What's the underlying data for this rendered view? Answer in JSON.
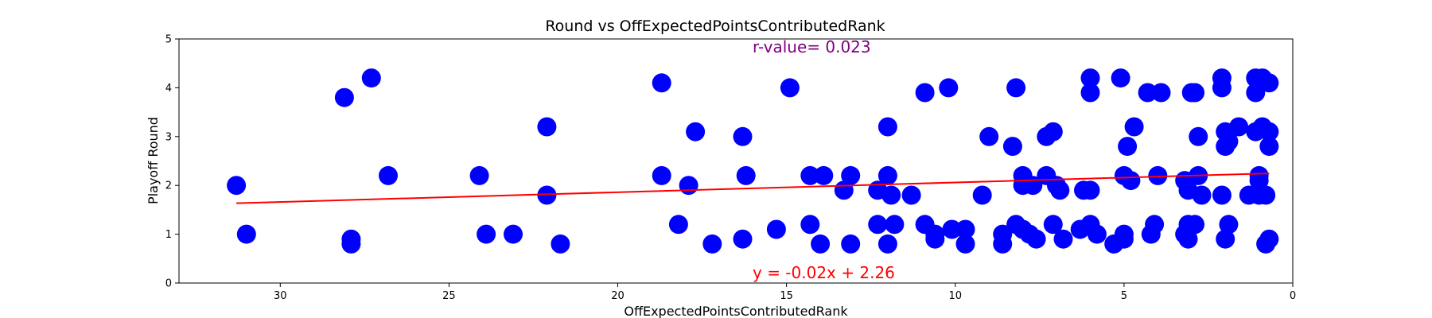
{
  "chart_data": {
    "type": "scatter",
    "title": "Round vs OffExpectedPointsContributedRank",
    "xlabel": "OffExpectedPointsContributedRank",
    "ylabel": "Playoff Round",
    "xlim": [
      33,
      0
    ],
    "ylim": [
      0,
      5
    ],
    "x_inverted": true,
    "xticks": [
      30,
      25,
      20,
      15,
      10,
      5,
      0
    ],
    "yticks": [
      0,
      1,
      2,
      3,
      4,
      5
    ],
    "grid": false,
    "point_color": "#0000ff",
    "fit_color": "#ff0000",
    "annotation_color": "#800080",
    "r_value_text": "r-value= 0.023",
    "fit_equation_text": "y = -0.02x + 2.26",
    "fit_line": {
      "slope": -0.02,
      "intercept": 2.26,
      "x_range": [
        31.3,
        0.7
      ]
    },
    "points": [
      {
        "x": 31.3,
        "y": 2.0
      },
      {
        "x": 31.0,
        "y": 1.0
      },
      {
        "x": 28.1,
        "y": 3.8
      },
      {
        "x": 27.9,
        "y": 0.9
      },
      {
        "x": 27.9,
        "y": 0.8
      },
      {
        "x": 27.3,
        "y": 4.2
      },
      {
        "x": 26.8,
        "y": 2.2
      },
      {
        "x": 24.1,
        "y": 2.2
      },
      {
        "x": 23.9,
        "y": 1.0
      },
      {
        "x": 23.1,
        "y": 1.0
      },
      {
        "x": 22.1,
        "y": 3.2
      },
      {
        "x": 22.1,
        "y": 1.8
      },
      {
        "x": 21.7,
        "y": 0.8
      },
      {
        "x": 18.7,
        "y": 4.1
      },
      {
        "x": 18.7,
        "y": 2.2
      },
      {
        "x": 18.2,
        "y": 1.2
      },
      {
        "x": 17.9,
        "y": 2.0
      },
      {
        "x": 17.7,
        "y": 3.1
      },
      {
        "x": 17.2,
        "y": 0.8
      },
      {
        "x": 16.3,
        "y": 3.0
      },
      {
        "x": 16.2,
        "y": 2.2
      },
      {
        "x": 16.3,
        "y": 0.9
      },
      {
        "x": 15.3,
        "y": 1.1
      },
      {
        "x": 14.9,
        "y": 4.0
      },
      {
        "x": 14.3,
        "y": 2.2
      },
      {
        "x": 14.3,
        "y": 1.2
      },
      {
        "x": 13.9,
        "y": 2.2
      },
      {
        "x": 14.0,
        "y": 0.8
      },
      {
        "x": 13.3,
        "y": 1.9
      },
      {
        "x": 13.1,
        "y": 2.2
      },
      {
        "x": 13.1,
        "y": 0.8
      },
      {
        "x": 12.3,
        "y": 1.9
      },
      {
        "x": 12.3,
        "y": 1.2
      },
      {
        "x": 12.0,
        "y": 3.2
      },
      {
        "x": 12.0,
        "y": 2.2
      },
      {
        "x": 11.9,
        "y": 1.8
      },
      {
        "x": 11.8,
        "y": 1.2
      },
      {
        "x": 12.0,
        "y": 0.8
      },
      {
        "x": 11.3,
        "y": 1.8
      },
      {
        "x": 10.9,
        "y": 3.9
      },
      {
        "x": 10.9,
        "y": 1.2
      },
      {
        "x": 10.6,
        "y": 1.0
      },
      {
        "x": 10.6,
        "y": 0.9
      },
      {
        "x": 10.2,
        "y": 4.0
      },
      {
        "x": 10.1,
        "y": 1.1
      },
      {
        "x": 9.7,
        "y": 1.1
      },
      {
        "x": 9.7,
        "y": 0.8
      },
      {
        "x": 9.2,
        "y": 1.8
      },
      {
        "x": 9.0,
        "y": 3.0
      },
      {
        "x": 8.6,
        "y": 1.0
      },
      {
        "x": 8.6,
        "y": 0.8
      },
      {
        "x": 8.3,
        "y": 2.8
      },
      {
        "x": 8.2,
        "y": 4.0
      },
      {
        "x": 8.2,
        "y": 1.2
      },
      {
        "x": 8.0,
        "y": 2.2
      },
      {
        "x": 8.0,
        "y": 2.0
      },
      {
        "x": 8.0,
        "y": 1.1
      },
      {
        "x": 7.8,
        "y": 1.0
      },
      {
        "x": 7.7,
        "y": 2.0
      },
      {
        "x": 7.6,
        "y": 0.9
      },
      {
        "x": 7.3,
        "y": 3.0
      },
      {
        "x": 7.3,
        "y": 2.2
      },
      {
        "x": 7.1,
        "y": 3.1
      },
      {
        "x": 7.1,
        "y": 1.2
      },
      {
        "x": 7.0,
        "y": 2.0
      },
      {
        "x": 6.9,
        "y": 1.9
      },
      {
        "x": 6.8,
        "y": 0.9
      },
      {
        "x": 6.3,
        "y": 1.1
      },
      {
        "x": 6.2,
        "y": 1.9
      },
      {
        "x": 6.0,
        "y": 4.2
      },
      {
        "x": 6.0,
        "y": 3.9
      },
      {
        "x": 6.0,
        "y": 1.9
      },
      {
        "x": 6.0,
        "y": 1.2
      },
      {
        "x": 5.8,
        "y": 1.0
      },
      {
        "x": 5.3,
        "y": 0.8
      },
      {
        "x": 5.1,
        "y": 4.2
      },
      {
        "x": 5.0,
        "y": 1.0
      },
      {
        "x": 5.0,
        "y": 0.9
      },
      {
        "x": 5.0,
        "y": 2.2
      },
      {
        "x": 4.9,
        "y": 2.8
      },
      {
        "x": 4.8,
        "y": 2.1
      },
      {
        "x": 4.7,
        "y": 3.2
      },
      {
        "x": 4.3,
        "y": 3.9
      },
      {
        "x": 4.2,
        "y": 1.0
      },
      {
        "x": 4.1,
        "y": 1.2
      },
      {
        "x": 4.0,
        "y": 2.2
      },
      {
        "x": 3.9,
        "y": 3.9
      },
      {
        "x": 3.2,
        "y": 2.1
      },
      {
        "x": 3.2,
        "y": 1.0
      },
      {
        "x": 3.1,
        "y": 1.1
      },
      {
        "x": 3.1,
        "y": 1.2
      },
      {
        "x": 3.1,
        "y": 1.9
      },
      {
        "x": 3.1,
        "y": 0.9
      },
      {
        "x": 3.0,
        "y": 3.9
      },
      {
        "x": 2.9,
        "y": 3.9
      },
      {
        "x": 2.9,
        "y": 1.2
      },
      {
        "x": 2.8,
        "y": 2.2
      },
      {
        "x": 2.8,
        "y": 3.0
      },
      {
        "x": 2.7,
        "y": 1.8
      },
      {
        "x": 2.1,
        "y": 4.2
      },
      {
        "x": 2.1,
        "y": 4.0
      },
      {
        "x": 2.0,
        "y": 3.1
      },
      {
        "x": 2.0,
        "y": 2.8
      },
      {
        "x": 2.0,
        "y": 0.9
      },
      {
        "x": 2.1,
        "y": 1.8
      },
      {
        "x": 1.9,
        "y": 2.9
      },
      {
        "x": 1.9,
        "y": 1.2
      },
      {
        "x": 1.6,
        "y": 3.2
      },
      {
        "x": 1.3,
        "y": 1.8
      },
      {
        "x": 1.1,
        "y": 4.2
      },
      {
        "x": 1.1,
        "y": 3.9
      },
      {
        "x": 1.1,
        "y": 3.1
      },
      {
        "x": 1.0,
        "y": 2.1
      },
      {
        "x": 1.0,
        "y": 1.8
      },
      {
        "x": 1.0,
        "y": 2.2
      },
      {
        "x": 0.9,
        "y": 4.2
      },
      {
        "x": 0.9,
        "y": 3.2
      },
      {
        "x": 0.8,
        "y": 1.8
      },
      {
        "x": 0.8,
        "y": 0.8
      },
      {
        "x": 0.7,
        "y": 2.8
      },
      {
        "x": 0.7,
        "y": 0.9
      },
      {
        "x": 0.7,
        "y": 3.1
      },
      {
        "x": 0.7,
        "y": 4.1
      }
    ]
  }
}
